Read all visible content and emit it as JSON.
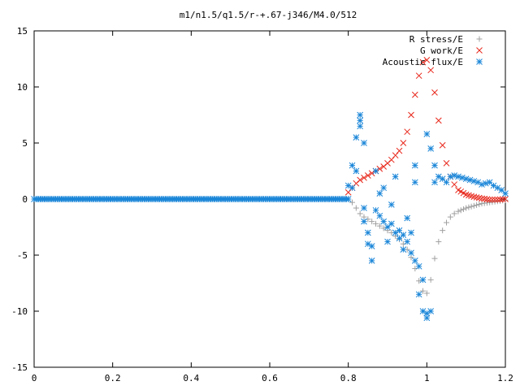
{
  "chart_data": {
    "type": "scatter",
    "title": "m1/n1.5/q1.5/r-+.67-j346/M4.0/512",
    "xlabel": "",
    "ylabel": "",
    "xlim": [
      0,
      1.2
    ],
    "ylim": [
      -15,
      15
    ],
    "x_ticks": [
      0,
      0.2,
      0.4,
      0.6,
      0.8,
      1,
      1.2
    ],
    "x_tick_labels": [
      "0",
      "0.2",
      "0.4",
      "0.6",
      "0.8",
      "1",
      "1.2"
    ],
    "y_ticks": [
      -15,
      -10,
      -5,
      0,
      5,
      10,
      15
    ],
    "y_tick_labels": [
      "-15",
      "-10",
      "-5",
      "0",
      "5",
      "10",
      "15"
    ],
    "grid": false,
    "legend_position": "top-right",
    "series": [
      {
        "name": "R stress/E",
        "marker": "plus",
        "color": "#a0a0a0",
        "points": [
          [
            0.0,
            0
          ],
          [
            0.8,
            0
          ],
          [
            0.81,
            -0.3
          ],
          [
            0.82,
            -0.8
          ],
          [
            0.83,
            -1.3
          ],
          [
            0.84,
            -1.6
          ],
          [
            0.85,
            -1.8
          ],
          [
            0.86,
            -2.0
          ],
          [
            0.87,
            -2.2
          ],
          [
            0.88,
            -2.4
          ],
          [
            0.89,
            -2.6
          ],
          [
            0.9,
            -2.8
          ],
          [
            0.91,
            -3.0
          ],
          [
            0.92,
            -3.3
          ],
          [
            0.93,
            -3.6
          ],
          [
            0.94,
            -4.0
          ],
          [
            0.95,
            -4.5
          ],
          [
            0.96,
            -5.2
          ],
          [
            0.97,
            -6.2
          ],
          [
            0.98,
            -7.3
          ],
          [
            0.99,
            -8.2
          ],
          [
            1.0,
            -8.4
          ],
          [
            1.01,
            -7.2
          ],
          [
            1.02,
            -5.3
          ],
          [
            1.03,
            -3.8
          ],
          [
            1.04,
            -2.8
          ],
          [
            1.05,
            -2.1
          ],
          [
            1.06,
            -1.6
          ],
          [
            1.07,
            -1.3
          ],
          [
            1.08,
            -1.1
          ],
          [
            1.1,
            -0.8
          ],
          [
            1.12,
            -0.6
          ],
          [
            1.14,
            -0.4
          ],
          [
            1.16,
            -0.3
          ],
          [
            1.18,
            -0.2
          ],
          [
            1.2,
            -0.1
          ]
        ]
      },
      {
        "name": "G work/E",
        "marker": "cross",
        "color": "#e8281c",
        "points": [
          [
            0.8,
            0.6
          ],
          [
            0.81,
            1.0
          ],
          [
            0.82,
            1.4
          ],
          [
            0.83,
            1.7
          ],
          [
            0.84,
            1.9
          ],
          [
            0.85,
            2.1
          ],
          [
            0.86,
            2.3
          ],
          [
            0.87,
            2.5
          ],
          [
            0.88,
            2.7
          ],
          [
            0.89,
            2.9
          ],
          [
            0.9,
            3.2
          ],
          [
            0.91,
            3.5
          ],
          [
            0.92,
            3.9
          ],
          [
            0.93,
            4.3
          ],
          [
            0.94,
            5.0
          ],
          [
            0.95,
            6.0
          ],
          [
            0.96,
            7.5
          ],
          [
            0.97,
            9.3
          ],
          [
            0.98,
            11.0
          ],
          [
            0.99,
            12.2
          ],
          [
            1.0,
            12.4
          ],
          [
            1.01,
            11.5
          ],
          [
            1.02,
            9.5
          ],
          [
            1.03,
            7.0
          ],
          [
            1.04,
            4.8
          ],
          [
            1.05,
            3.2
          ],
          [
            1.06,
            2.0
          ],
          [
            1.07,
            1.3
          ],
          [
            1.08,
            0.8
          ],
          [
            1.1,
            0.4
          ],
          [
            1.12,
            0.2
          ],
          [
            1.14,
            0.05
          ],
          [
            1.16,
            -0.05
          ],
          [
            1.18,
            -0.05
          ],
          [
            1.2,
            0.0
          ]
        ]
      },
      {
        "name": "Acoustic flux/E",
        "marker": "star",
        "color": "#1a86d8",
        "points": [
          [
            0.0,
            0
          ],
          [
            0.8,
            0
          ],
          [
            0.8,
            1.2
          ],
          [
            0.81,
            1.0
          ],
          [
            0.81,
            3.0
          ],
          [
            0.82,
            2.5
          ],
          [
            0.82,
            5.5
          ],
          [
            0.83,
            7.5
          ],
          [
            0.83,
            7.0
          ],
          [
            0.83,
            6.5
          ],
          [
            0.84,
            5.0
          ],
          [
            0.84,
            -0.8
          ],
          [
            0.84,
            -2.0
          ],
          [
            0.85,
            -3.0
          ],
          [
            0.85,
            -4.0
          ],
          [
            0.86,
            -5.5
          ],
          [
            0.86,
            -4.2
          ],
          [
            0.87,
            2.5
          ],
          [
            0.87,
            -1.0
          ],
          [
            0.88,
            0.5
          ],
          [
            0.88,
            -1.5
          ],
          [
            0.89,
            1.0
          ],
          [
            0.89,
            -2.0
          ],
          [
            0.9,
            -2.5
          ],
          [
            0.9,
            -3.8
          ],
          [
            0.91,
            -0.5
          ],
          [
            0.91,
            -2.2
          ],
          [
            0.92,
            2.0
          ],
          [
            0.92,
            -3.0
          ],
          [
            0.93,
            -2.8
          ],
          [
            0.93,
            -3.5
          ],
          [
            0.94,
            -3.2
          ],
          [
            0.94,
            -4.5
          ],
          [
            0.95,
            -1.7
          ],
          [
            0.95,
            -3.8
          ],
          [
            0.96,
            -4.8
          ],
          [
            0.96,
            -3.0
          ],
          [
            0.97,
            3.0
          ],
          [
            0.97,
            1.5
          ],
          [
            0.97,
            -5.5
          ],
          [
            0.98,
            -6.0
          ],
          [
            0.98,
            -8.5
          ],
          [
            0.99,
            -7.2
          ],
          [
            0.99,
            -10.0
          ],
          [
            1.0,
            -10.2
          ],
          [
            1.0,
            -10.6
          ],
          [
            1.0,
            5.8
          ],
          [
            1.01,
            -10.0
          ],
          [
            1.01,
            4.5
          ],
          [
            1.02,
            1.5
          ],
          [
            1.02,
            3.0
          ],
          [
            1.03,
            2.0
          ],
          [
            1.04,
            1.8
          ],
          [
            1.05,
            1.5
          ],
          [
            1.06,
            2.0
          ],
          [
            1.07,
            2.1
          ],
          [
            1.08,
            2.0
          ],
          [
            1.09,
            1.9
          ],
          [
            1.1,
            1.8
          ],
          [
            1.11,
            1.7
          ],
          [
            1.12,
            1.6
          ],
          [
            1.13,
            1.5
          ],
          [
            1.14,
            1.3
          ],
          [
            1.15,
            1.4
          ],
          [
            1.16,
            1.5
          ],
          [
            1.17,
            1.2
          ],
          [
            1.18,
            1.0
          ],
          [
            1.19,
            0.8
          ],
          [
            1.2,
            0.5
          ]
        ]
      }
    ]
  }
}
